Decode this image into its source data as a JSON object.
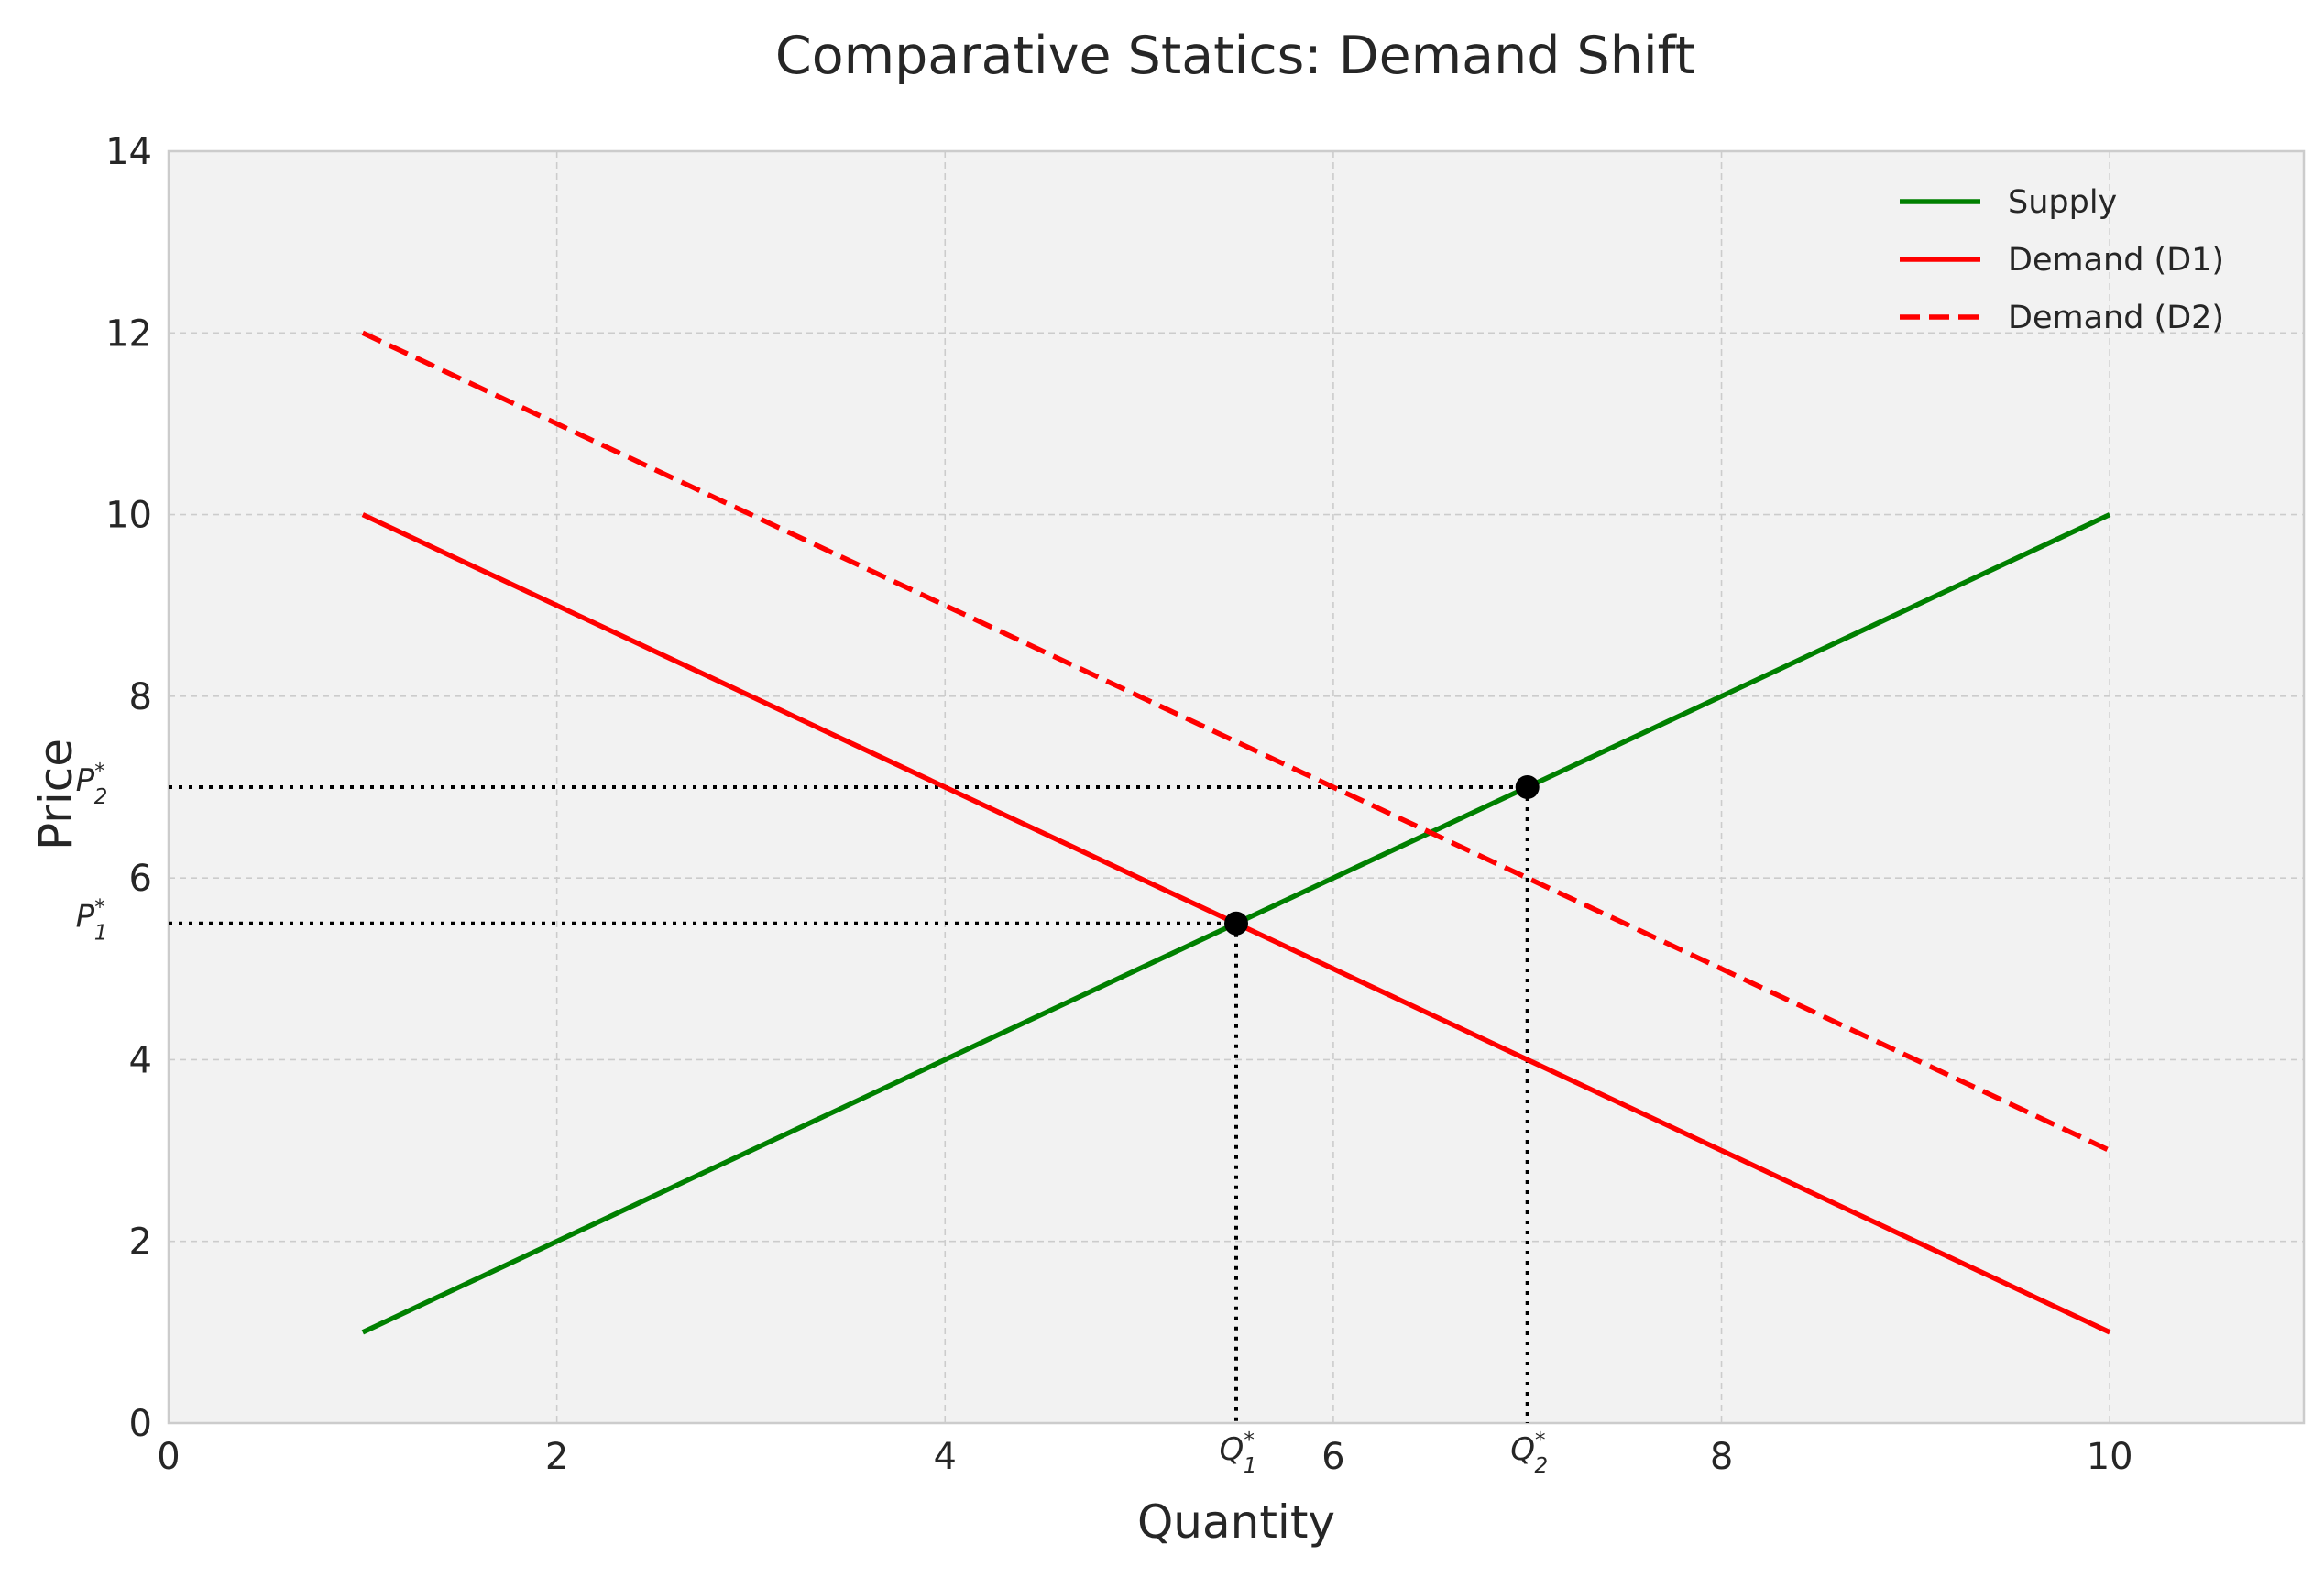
{
  "chart_data": {
    "type": "line",
    "title": "Comparative Statics: Demand Shift",
    "xlabel": "Quantity",
    "ylabel": "Price",
    "xlim": [
      0,
      11
    ],
    "ylim": [
      0,
      14
    ],
    "x_ticks": [
      0,
      2,
      4,
      6,
      8,
      10
    ],
    "y_ticks": [
      0,
      2,
      4,
      6,
      8,
      10,
      12,
      14
    ],
    "grid": true,
    "legend_position": "top-right",
    "series": [
      {
        "name": "Supply",
        "color": "#008000",
        "style": "solid",
        "x": [
          1,
          10
        ],
        "y": [
          1,
          10
        ]
      },
      {
        "name": "Demand (D1)",
        "color": "#ff0000",
        "style": "solid",
        "x": [
          1,
          10
        ],
        "y": [
          10,
          1
        ]
      },
      {
        "name": "Demand (D2)",
        "color": "#ff0000",
        "style": "dashed",
        "x": [
          1,
          10
        ],
        "y": [
          12,
          3
        ]
      }
    ],
    "equilibria": [
      {
        "x": 5.5,
        "y": 5.5,
        "q_label": "Q",
        "q_sub": "1",
        "p_label": "P",
        "p_sub": "1",
        "star": "*"
      },
      {
        "x": 7,
        "y": 7,
        "q_label": "Q",
        "q_sub": "2",
        "p_label": "P",
        "p_sub": "2",
        "star": "*"
      }
    ]
  }
}
